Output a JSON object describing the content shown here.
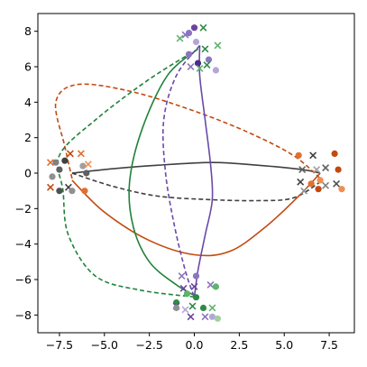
{
  "chart_data": {
    "type": "line",
    "xlim": [
      -8.7,
      8.9
    ],
    "ylim": [
      -9.0,
      9.0
    ],
    "xticks": [
      -7.5,
      -5.0,
      -2.5,
      0.0,
      2.5,
      5.0,
      7.5
    ],
    "xtick_labels": [
      "−7.5",
      "−5.0",
      "−2.5",
      "0.0",
      "2.5",
      "5.0",
      "7.5"
    ],
    "yticks": [
      -8,
      -6,
      -4,
      -2,
      0,
      2,
      4,
      6,
      8
    ],
    "ytick_labels": [
      "−8",
      "−6",
      "−4",
      "−2",
      "0",
      "2",
      "4",
      "6",
      "8"
    ],
    "grid": false,
    "legend": "none",
    "lines": [
      {
        "color": "#404040",
        "dash": "solid",
        "points": [
          [
            -6.8,
            0.0
          ],
          [
            -4.5,
            0.25
          ],
          [
            -2,
            0.45
          ],
          [
            1,
            0.6
          ],
          [
            3.5,
            0.45
          ],
          [
            6,
            0.2
          ],
          [
            7.0,
            0.0
          ]
        ]
      },
      {
        "color": "#404040",
        "dash": "dashed",
        "points": [
          [
            -6.8,
            0.0
          ],
          [
            -4.5,
            -0.75
          ],
          [
            -2,
            -1.3
          ],
          [
            1,
            -1.5
          ],
          [
            3.5,
            -1.55
          ],
          [
            5.5,
            -1.4
          ],
          [
            7.0,
            -0.5
          ]
        ]
      },
      {
        "color": "#c24a10",
        "dash": "solid",
        "points": [
          [
            -6.8,
            -0.4
          ],
          [
            -5,
            -2.2
          ],
          [
            -2.5,
            -3.8
          ],
          [
            0,
            -4.6
          ],
          [
            2,
            -4.4
          ],
          [
            4,
            -3.0
          ],
          [
            5.8,
            -1.3
          ],
          [
            7.0,
            0.0
          ]
        ]
      },
      {
        "color": "#c24a10",
        "dash": "dashed",
        "points": [
          [
            -6.8,
            -0.3
          ],
          [
            -7.2,
            1.5
          ],
          [
            -7.7,
            4.0
          ],
          [
            -6.5,
            5.0
          ],
          [
            -3.5,
            4.6
          ],
          [
            0,
            3.5
          ],
          [
            3,
            2.3
          ],
          [
            5.5,
            1.0
          ],
          [
            7.0,
            -0.3
          ]
        ]
      },
      {
        "color": "#21823a",
        "dash": "solid",
        "points": [
          [
            0.2,
            7.0
          ],
          [
            -1.5,
            5.5
          ],
          [
            -2.9,
            2.5
          ],
          [
            -3.6,
            -0.5
          ],
          [
            -3.4,
            -3.0
          ],
          [
            -2.5,
            -5.0
          ],
          [
            -1.0,
            -6.3
          ],
          [
            0.2,
            -7.0
          ]
        ]
      },
      {
        "color": "#21823a",
        "dash": "dashed",
        "points": [
          [
            0.2,
            7.0
          ],
          [
            -2.5,
            5.3
          ],
          [
            -5.5,
            3.0
          ],
          [
            -7.5,
            1.0
          ],
          [
            -7.3,
            -1.0
          ],
          [
            -7.0,
            -3.5
          ],
          [
            -5.5,
            -5.8
          ],
          [
            -3,
            -6.6
          ],
          [
            0.2,
            -7.0
          ]
        ]
      },
      {
        "color": "#6a4aa8",
        "dash": "solid",
        "points": [
          [
            0.3,
            7.2
          ],
          [
            0.3,
            5.5
          ],
          [
            0.6,
            3.0
          ],
          [
            0.9,
            0.5
          ],
          [
            1.0,
            -1.5
          ],
          [
            0.6,
            -3.5
          ],
          [
            0.2,
            -5.5
          ],
          [
            0.0,
            -7.0
          ]
        ]
      },
      {
        "color": "#6a4aa8",
        "dash": "dashed",
        "points": [
          [
            0.3,
            7.2
          ],
          [
            -1.0,
            5.5
          ],
          [
            -1.7,
            3.0
          ],
          [
            -1.6,
            0.0
          ],
          [
            -1.1,
            -3.0
          ],
          [
            -0.5,
            -5.5
          ],
          [
            0.0,
            -7.0
          ]
        ]
      }
    ],
    "points": [
      {
        "x": 0.0,
        "y": 8.2,
        "marker": "o",
        "color": "#6b43a0"
      },
      {
        "x": -0.3,
        "y": 7.9,
        "marker": "o",
        "color": "#8a75c0"
      },
      {
        "x": -0.5,
        "y": 7.8,
        "marker": "x",
        "color": "#8a75c0"
      },
      {
        "x": -0.8,
        "y": 7.6,
        "marker": "x",
        "color": "#5fb56a"
      },
      {
        "x": 0.5,
        "y": 8.2,
        "marker": "x",
        "color": "#2e8b47"
      },
      {
        "x": 0.1,
        "y": 7.4,
        "marker": "o",
        "color": "#b4a7d6"
      },
      {
        "x": 0.6,
        "y": 7.0,
        "marker": "x",
        "color": "#2e8b47"
      },
      {
        "x": 1.3,
        "y": 7.2,
        "marker": "x",
        "color": "#5fb56a"
      },
      {
        "x": -0.3,
        "y": 6.7,
        "marker": "o",
        "color": "#8a75c0"
      },
      {
        "x": 0.2,
        "y": 6.2,
        "marker": "o",
        "color": "#4a2c86"
      },
      {
        "x": 0.8,
        "y": 6.4,
        "marker": "o",
        "color": "#8a75c0"
      },
      {
        "x": -0.2,
        "y": 6.0,
        "marker": "x",
        "color": "#8a75c0"
      },
      {
        "x": 0.3,
        "y": 5.9,
        "marker": "x",
        "color": "#5fb56a"
      },
      {
        "x": 0.7,
        "y": 6.1,
        "marker": "x",
        "color": "#2e8b47"
      },
      {
        "x": 1.2,
        "y": 5.8,
        "marker": "o",
        "color": "#b4a7d6"
      },
      {
        "x": -6.9,
        "y": 1.1,
        "marker": "x",
        "color": "#c24a10"
      },
      {
        "x": -6.3,
        "y": 1.1,
        "marker": "x",
        "color": "#e07030"
      },
      {
        "x": -7.7,
        "y": 0.6,
        "marker": "o",
        "color": "#808080"
      },
      {
        "x": -8.0,
        "y": 0.6,
        "marker": "x",
        "color": "#e07030"
      },
      {
        "x": -7.2,
        "y": 0.7,
        "marker": "o",
        "color": "#404040"
      },
      {
        "x": -6.2,
        "y": 0.4,
        "marker": "o",
        "color": "#a0a0a0"
      },
      {
        "x": -5.9,
        "y": 0.5,
        "marker": "x",
        "color": "#f09050"
      },
      {
        "x": -7.5,
        "y": 0.2,
        "marker": "o",
        "color": "#606060"
      },
      {
        "x": -6.0,
        "y": 0.0,
        "marker": "o",
        "color": "#606060"
      },
      {
        "x": -7.9,
        "y": -0.2,
        "marker": "o",
        "color": "#909090"
      },
      {
        "x": -7.0,
        "y": -0.8,
        "marker": "x",
        "color": "#404040"
      },
      {
        "x": -8.0,
        "y": -0.8,
        "marker": "x",
        "color": "#c24a10"
      },
      {
        "x": -7.5,
        "y": -1.0,
        "marker": "o",
        "color": "#505050"
      },
      {
        "x": -6.8,
        "y": -1.0,
        "marker": "o",
        "color": "#909090"
      },
      {
        "x": -6.1,
        "y": -1.0,
        "marker": "o",
        "color": "#e07030"
      },
      {
        "x": 6.6,
        "y": 1.0,
        "marker": "x",
        "color": "#404040"
      },
      {
        "x": 5.8,
        "y": 1.0,
        "marker": "o",
        "color": "#e07030"
      },
      {
        "x": 7.8,
        "y": 1.1,
        "marker": "o",
        "color": "#c24a10"
      },
      {
        "x": 7.3,
        "y": 0.3,
        "marker": "x",
        "color": "#606060"
      },
      {
        "x": 6.0,
        "y": 0.2,
        "marker": "x",
        "color": "#606060"
      },
      {
        "x": 6.8,
        "y": 0.2,
        "marker": "x",
        "color": "#a0a0a0"
      },
      {
        "x": 8.0,
        "y": 0.2,
        "marker": "o",
        "color": "#c24a10"
      },
      {
        "x": 5.9,
        "y": -0.5,
        "marker": "x",
        "color": "#404040"
      },
      {
        "x": 6.5,
        "y": -0.6,
        "marker": "o",
        "color": "#e07030"
      },
      {
        "x": 7.0,
        "y": -0.4,
        "marker": "o",
        "color": "#f09050"
      },
      {
        "x": 7.3,
        "y": -0.7,
        "marker": "x",
        "color": "#808080"
      },
      {
        "x": 7.9,
        "y": -0.6,
        "marker": "x",
        "color": "#505050"
      },
      {
        "x": 6.1,
        "y": -1.0,
        "marker": "x",
        "color": "#909090"
      },
      {
        "x": 6.9,
        "y": -0.9,
        "marker": "o",
        "color": "#c24a10"
      },
      {
        "x": 8.2,
        "y": -0.9,
        "marker": "o",
        "color": "#f09050"
      },
      {
        "x": -0.7,
        "y": -5.8,
        "marker": "x",
        "color": "#8a75c0"
      },
      {
        "x": 0.1,
        "y": -5.8,
        "marker": "o",
        "color": "#8a75c0"
      },
      {
        "x": -0.6,
        "y": -6.5,
        "marker": "x",
        "color": "#6b43a0"
      },
      {
        "x": 0.0,
        "y": -6.4,
        "marker": "x",
        "color": "#6b43a0"
      },
      {
        "x": 0.9,
        "y": -6.3,
        "marker": "x",
        "color": "#8a75c0"
      },
      {
        "x": 1.2,
        "y": -6.4,
        "marker": "o",
        "color": "#5fb56a"
      },
      {
        "x": -0.4,
        "y": -6.8,
        "marker": "o",
        "color": "#5fb56a"
      },
      {
        "x": 0.1,
        "y": -7.0,
        "marker": "o",
        "color": "#2e8b47"
      },
      {
        "x": -1.0,
        "y": -7.3,
        "marker": "o",
        "color": "#2e8b47"
      },
      {
        "x": -1.0,
        "y": -7.5,
        "marker": "x",
        "color": "#6b43a0"
      },
      {
        "x": -1.0,
        "y": -7.6,
        "marker": "o",
        "color": "#909090"
      },
      {
        "x": -0.5,
        "y": -7.7,
        "marker": "x",
        "color": "#b4a7d6"
      },
      {
        "x": -0.1,
        "y": -7.5,
        "marker": "x",
        "color": "#2e8b47"
      },
      {
        "x": 0.5,
        "y": -7.6,
        "marker": "o",
        "color": "#2e8b47"
      },
      {
        "x": 1.0,
        "y": -7.6,
        "marker": "x",
        "color": "#5fb56a"
      },
      {
        "x": -0.2,
        "y": -8.1,
        "marker": "x",
        "color": "#6b43a0"
      },
      {
        "x": 0.6,
        "y": -8.1,
        "marker": "x",
        "color": "#8a75c0"
      },
      {
        "x": 1.0,
        "y": -8.1,
        "marker": "o",
        "color": "#b4a7d6"
      },
      {
        "x": 1.3,
        "y": -8.2,
        "marker": "o",
        "color": "#a0d0a0"
      }
    ]
  }
}
